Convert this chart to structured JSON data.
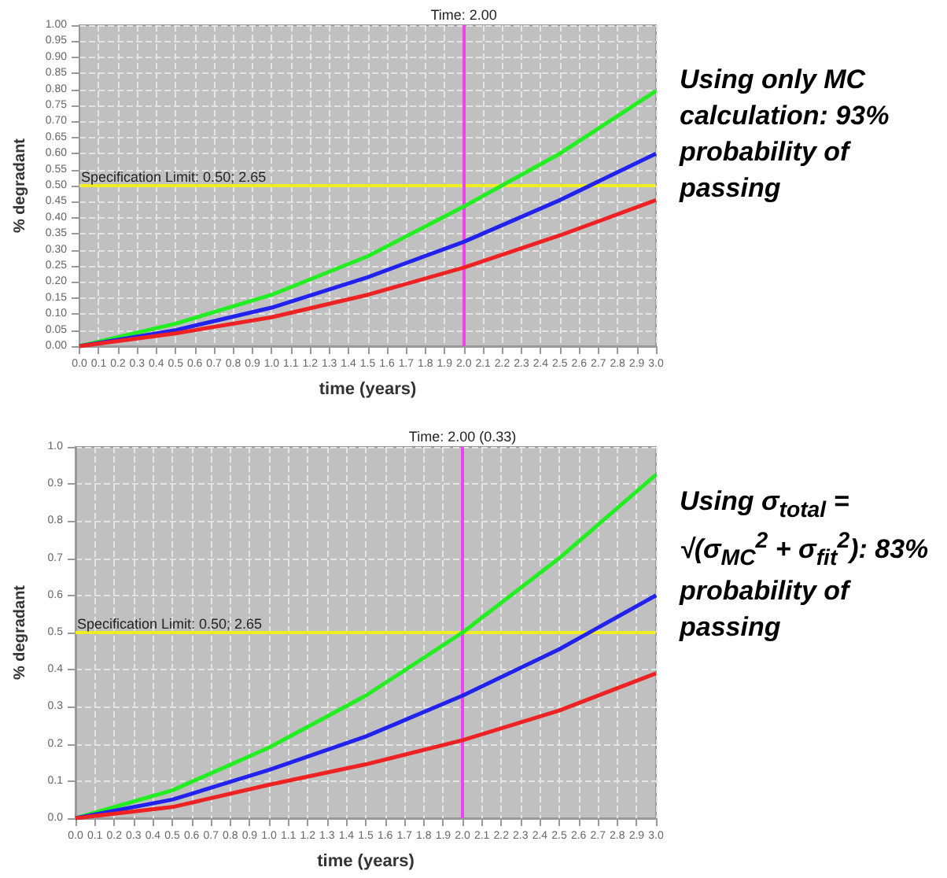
{
  "chart_data": [
    {
      "type": "line",
      "xlabel": "time (years)",
      "ylabel": "% degradant",
      "x": [
        0,
        0.5,
        1.0,
        1.5,
        2.0,
        2.5,
        3.0
      ],
      "series": [
        {
          "color": "#22ee22",
          "values": [
            0,
            0.07,
            0.16,
            0.28,
            0.435,
            0.6,
            0.795
          ]
        },
        {
          "color": "#2222ee",
          "values": [
            0,
            0.05,
            0.12,
            0.215,
            0.325,
            0.455,
            0.6
          ]
        },
        {
          "color": "#ee2222",
          "values": [
            0,
            0.04,
            0.09,
            0.16,
            0.245,
            0.345,
            0.455
          ]
        }
      ],
      "xlim": [
        0,
        3.0
      ],
      "xticks": [
        {
          "value": 0,
          "label": "0.0"
        },
        {
          "value": 0.1,
          "label": "0.1"
        },
        {
          "value": 0.2,
          "label": "0.2"
        },
        {
          "value": 0.3,
          "label": "0.3"
        },
        {
          "value": 0.4,
          "label": "0.4"
        },
        {
          "value": 0.5,
          "label": "0.5"
        },
        {
          "value": 0.6,
          "label": "0.6"
        },
        {
          "value": 0.7,
          "label": "0.7"
        },
        {
          "value": 0.8,
          "label": "0.8"
        },
        {
          "value": 0.9,
          "label": "0.9"
        },
        {
          "value": 1,
          "label": "1.0"
        },
        {
          "value": 1.1,
          "label": "1.1"
        },
        {
          "value": 1.2,
          "label": "1.2"
        },
        {
          "value": 1.3,
          "label": "1.3"
        },
        {
          "value": 1.4,
          "label": "1.4"
        },
        {
          "value": 1.5,
          "label": "1.5"
        },
        {
          "value": 1.6,
          "label": "1.6"
        },
        {
          "value": 1.7,
          "label": "1.7"
        },
        {
          "value": 1.8,
          "label": "1.8"
        },
        {
          "value": 1.9,
          "label": "1.9"
        },
        {
          "value": 2,
          "label": "2.0"
        },
        {
          "value": 2.1,
          "label": "2.1"
        },
        {
          "value": 2.2,
          "label": "2.2"
        },
        {
          "value": 2.3,
          "label": "2.3"
        },
        {
          "value": 2.4,
          "label": "2.4"
        },
        {
          "value": 2.5,
          "label": "2.5"
        },
        {
          "value": 2.6,
          "label": "2.6"
        },
        {
          "value": 2.7,
          "label": "2.7"
        },
        {
          "value": 2.8,
          "label": "2.8"
        },
        {
          "value": 2.9,
          "label": "2.9"
        },
        {
          "value": 3,
          "label": "3.0"
        }
      ],
      "ylim": [
        0,
        1.0
      ],
      "yticks": [
        {
          "value": 0,
          "label": "0.00"
        },
        0.05,
        {
          "value": 0.1,
          "label": "0.10"
        },
        0.15,
        {
          "value": 0.2,
          "label": "0.20"
        },
        0.25,
        {
          "value": 0.3,
          "label": "0.30"
        },
        0.35,
        {
          "value": 0.4,
          "label": "0.40"
        },
        0.45,
        {
          "value": 0.5,
          "label": "0.50"
        },
        0.55,
        {
          "value": 0.6,
          "label": "0.60"
        },
        0.65,
        {
          "value": 0.7,
          "label": "0.70"
        },
        0.75,
        {
          "value": 0.8,
          "label": "0.80"
        },
        0.85,
        {
          "value": 0.9,
          "label": "0.90"
        },
        0.95,
        {
          "value": 1,
          "label": "1.00"
        }
      ],
      "grid": true,
      "ref_lines": [
        {
          "axis": "y",
          "value": 0.5,
          "label": "Specification Limit: 0.50; 2.65",
          "color": "#eeee22"
        },
        {
          "axis": "x",
          "value": 2.0,
          "label": "Time: 2.00",
          "color": "#ee44ee"
        }
      ],
      "annotations": [
        "Using only MC calculation: 93% probability of passing"
      ]
    },
    {
      "type": "line",
      "xlabel": "time (years)",
      "ylabel": "% degradant",
      "x": [
        0,
        0.5,
        1.0,
        1.5,
        2.0,
        2.5,
        3.0
      ],
      "series": [
        {
          "color": "#22ee22",
          "values": [
            0,
            0.075,
            0.19,
            0.33,
            0.5,
            0.7,
            0.925
          ]
        },
        {
          "color": "#2222ee",
          "values": [
            0,
            0.05,
            0.13,
            0.22,
            0.33,
            0.455,
            0.6
          ]
        },
        {
          "color": "#ee2222",
          "values": [
            0,
            0.03,
            0.09,
            0.145,
            0.21,
            0.29,
            0.39
          ]
        }
      ],
      "xlim": [
        0,
        3.0
      ],
      "xticks": [
        {
          "value": 0,
          "label": "0.0"
        },
        {
          "value": 0.1,
          "label": "0.1"
        },
        {
          "value": 0.2,
          "label": "0.2"
        },
        {
          "value": 0.3,
          "label": "0.3"
        },
        {
          "value": 0.4,
          "label": "0.4"
        },
        {
          "value": 0.5,
          "label": "0.5"
        },
        {
          "value": 0.6,
          "label": "0.6"
        },
        {
          "value": 0.7,
          "label": "0.7"
        },
        {
          "value": 0.8,
          "label": "0.8"
        },
        {
          "value": 0.9,
          "label": "0.9"
        },
        {
          "value": 1,
          "label": "1.0"
        },
        {
          "value": 1.1,
          "label": "1.1"
        },
        {
          "value": 1.2,
          "label": "1.2"
        },
        {
          "value": 1.3,
          "label": "1.3"
        },
        {
          "value": 1.4,
          "label": "1.4"
        },
        {
          "value": 1.5,
          "label": "1.5"
        },
        {
          "value": 1.6,
          "label": "1.6"
        },
        {
          "value": 1.7,
          "label": "1.7"
        },
        {
          "value": 1.8,
          "label": "1.8"
        },
        {
          "value": 1.9,
          "label": "1.9"
        },
        {
          "value": 2,
          "label": "2.0"
        },
        {
          "value": 2.1,
          "label": "2.1"
        },
        {
          "value": 2.2,
          "label": "2.2"
        },
        {
          "value": 2.3,
          "label": "2.3"
        },
        {
          "value": 2.4,
          "label": "2.4"
        },
        {
          "value": 2.5,
          "label": "2.5"
        },
        {
          "value": 2.6,
          "label": "2.6"
        },
        {
          "value": 2.7,
          "label": "2.7"
        },
        {
          "value": 2.8,
          "label": "2.8"
        },
        {
          "value": 2.9,
          "label": "2.9"
        },
        {
          "value": 3,
          "label": "3.0"
        }
      ],
      "ylim": [
        0,
        1.0
      ],
      "yticks": [
        {
          "value": 0,
          "label": "0.0"
        },
        0.1,
        0.2,
        0.3,
        0.4,
        0.5,
        0.6,
        0.7,
        0.8,
        0.9,
        {
          "value": 1,
          "label": "1.0"
        }
      ],
      "grid": true,
      "ref_lines": [
        {
          "axis": "y",
          "value": 0.5,
          "label": "Specification Limit: 0.50; 2.65",
          "color": "#eeee22"
        },
        {
          "axis": "x",
          "value": 2.0,
          "label": "Time: 2.00 (0.33)",
          "color": "#ee44ee"
        }
      ],
      "annotations": [
        "Using σ$_{total}$ = √(σ$_{MC}$$^{2}$ + σ$_{fit}$$^{2}$): 83% probability of passing"
      ]
    }
  ]
}
